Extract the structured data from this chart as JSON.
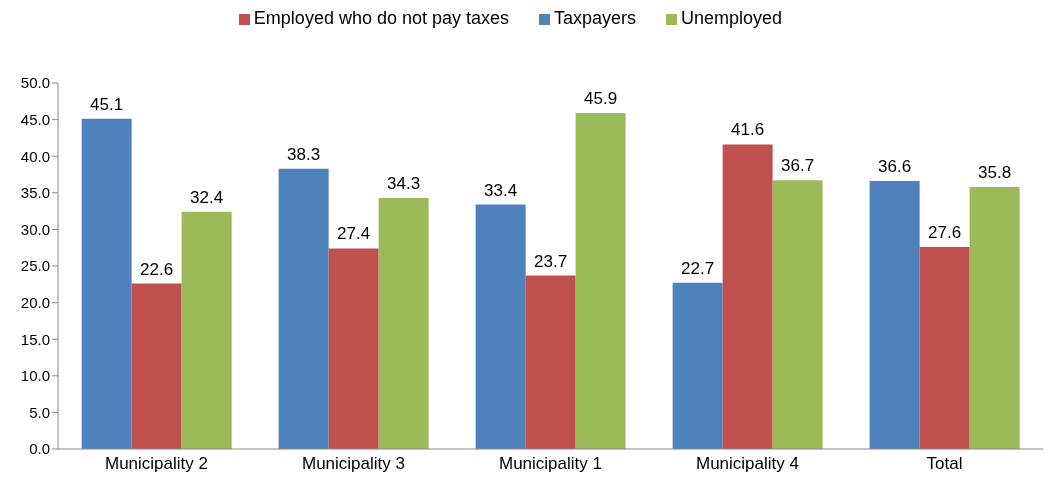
{
  "chart_data": {
    "type": "bar",
    "categories": [
      "Municipality 2",
      "Municipality 3",
      "Municipality 1",
      "Municipality 4",
      "Total"
    ],
    "series": [
      {
        "name": "Taxpayers",
        "color": "#4f81bd",
        "values": [
          45.1,
          38.3,
          33.4,
          22.7,
          36.6
        ]
      },
      {
        "name": "Employed who do not pay taxes",
        "color": "#c0504d",
        "values": [
          22.6,
          27.4,
          23.7,
          41.6,
          27.6
        ]
      },
      {
        "name": "Unemployed",
        "color": "#9bbb59",
        "values": [
          32.4,
          34.3,
          45.9,
          36.7,
          35.8
        ]
      }
    ],
    "ylim": [
      0,
      50
    ],
    "yticks": [
      {
        "value": 0,
        "label": "0.0"
      },
      {
        "value": 5,
        "label": "5.0"
      },
      {
        "value": 10,
        "label": "10.0"
      },
      {
        "value": 15,
        "label": "15.0"
      },
      {
        "value": 20,
        "label": "20.0"
      },
      {
        "value": 25,
        "label": "25.0"
      },
      {
        "value": 30,
        "label": "30.0"
      },
      {
        "value": 35,
        "label": "35.0"
      },
      {
        "value": 40,
        "label": "40.0"
      },
      {
        "value": 45,
        "label": "45.0"
      },
      {
        "value": 50,
        "label": "50.0"
      }
    ],
    "grid": false,
    "legend": "top",
    "data_labels": true
  }
}
